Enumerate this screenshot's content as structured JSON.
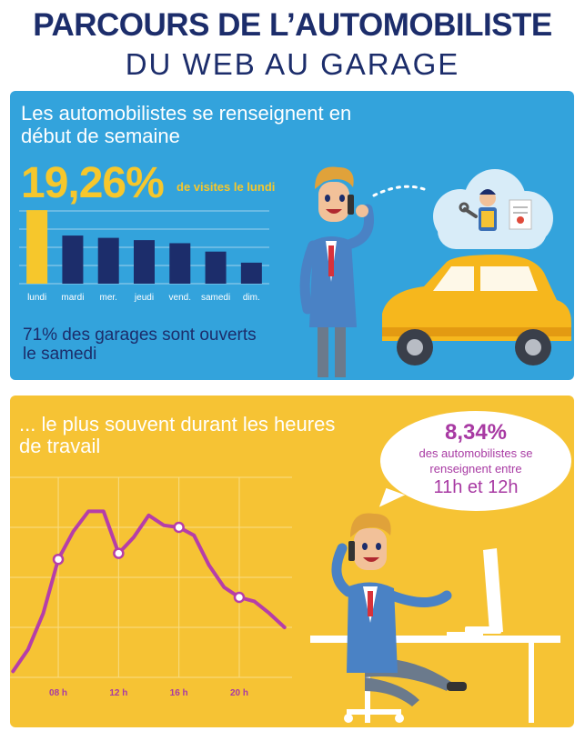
{
  "header": {
    "title": "PARCOURS DE L’AUTOMOBILISTE",
    "subtitle": "DU WEB AU GARAGE"
  },
  "weekly_section": {
    "heading": "Les automobilistes se renseignent en début de semaine",
    "stat_value": "19,26%",
    "stat_label": "de visites le lundi",
    "note": "71% des garages sont ouverts le samedi"
  },
  "hourly_section": {
    "heading": "... le plus souvent durant les heures de travail",
    "bubble_value": "8,34%",
    "bubble_text": "des automobilistes se renseignent entre",
    "bubble_hours": "11h et 12h"
  },
  "chart_data": [
    {
      "type": "bar",
      "categories": [
        "lundi",
        "mardi",
        "mer.",
        "jeudi",
        "vend.",
        "samedi",
        "dim."
      ],
      "values": [
        19.26,
        12.6,
        12.0,
        11.4,
        10.6,
        8.4,
        5.5
      ],
      "ylim": [
        0,
        20
      ],
      "grid": true,
      "highlight_color": "#f6c72c",
      "bar_color": "#1c2d6b"
    },
    {
      "type": "line",
      "x": [
        5,
        6,
        7,
        8,
        9,
        10,
        11,
        12,
        13,
        14,
        15,
        16,
        17,
        18,
        19,
        20,
        21,
        22,
        23
      ],
      "values": [
        0.3,
        1.4,
        3.2,
        5.9,
        7.3,
        8.3,
        8.3,
        6.2,
        7.0,
        8.1,
        7.6,
        7.5,
        7.1,
        5.6,
        4.5,
        4.0,
        3.8,
        3.2,
        2.5
      ],
      "xticks": [
        "08 h",
        "12 h",
        "16 h",
        "20 h"
      ],
      "xtick_values": [
        8,
        12,
        16,
        20
      ],
      "marked_x": [
        8,
        12,
        16,
        20
      ],
      "xlim": [
        4.8,
        23.5
      ],
      "ylim": [
        0,
        10
      ],
      "grid": true,
      "line_color": "#b63ea8"
    }
  ]
}
